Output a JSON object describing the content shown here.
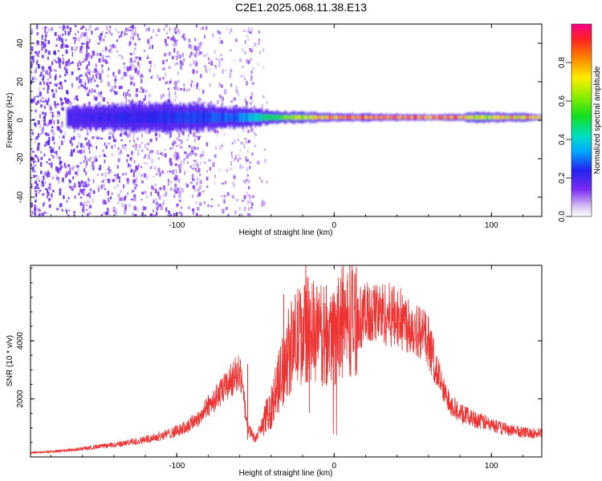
{
  "title": "C2E1.2025.068.11.38.E13",
  "chart_data": [
    {
      "type": "heatmap",
      "xlabel": "Height of straight line (km)",
      "ylabel": "Frequency (Hz)",
      "xlim": [
        -193,
        132
      ],
      "ylim": [
        -50,
        50
      ],
      "xticks": [
        -100,
        0,
        100
      ],
      "yticks": [
        -40,
        -20,
        0,
        20,
        40
      ],
      "colorbar": {
        "label": "Normalized spectral amplitude",
        "range": [
          0.0,
          1.0
        ],
        "ticks": [
          0.0,
          0.2,
          0.4,
          0.6,
          0.8
        ]
      },
      "band": [
        {
          "x": -165,
          "halfwidth_hz": 5,
          "amplitude": 0.22
        },
        {
          "x": -140,
          "halfwidth_hz": 6,
          "amplitude": 0.24
        },
        {
          "x": -110,
          "halfwidth_hz": 7,
          "amplitude": 0.26
        },
        {
          "x": -85,
          "halfwidth_hz": 6,
          "amplitude": 0.28
        },
        {
          "x": -60,
          "halfwidth_hz": 5,
          "amplitude": 0.32
        },
        {
          "x": -40,
          "halfwidth_hz": 3,
          "amplitude": 0.55
        },
        {
          "x": -20,
          "halfwidth_hz": 2.5,
          "amplitude": 0.75
        },
        {
          "x": 0,
          "halfwidth_hz": 2,
          "amplitude": 0.9
        },
        {
          "x": 40,
          "halfwidth_hz": 1.5,
          "amplitude": 0.95
        },
        {
          "x": 80,
          "halfwidth_hz": 1.5,
          "amplitude": 0.9
        },
        {
          "x": 90,
          "halfwidth_hz": 2.5,
          "amplitude": 0.7
        },
        {
          "x": 132,
          "halfwidth_hz": 1.5,
          "amplitude": 0.9
        }
      ]
    },
    {
      "type": "line",
      "xlabel": "Height of straight line (km)",
      "ylabel": "SNR (10 * v/v)",
      "xlim": [
        -193,
        132
      ],
      "ylim": [
        0,
        6600
      ],
      "xticks": [
        -100,
        0,
        100
      ],
      "yticks": [
        2000,
        4000
      ],
      "series": [
        {
          "color": "#ee3333",
          "x": [
            -193,
            -180,
            -165,
            -150,
            -135,
            -120,
            -105,
            -95,
            -85,
            -78,
            -72,
            -66,
            -60,
            -55,
            -50,
            -45,
            -40,
            -35,
            -30,
            -25,
            -20,
            -15,
            -10,
            -5,
            0,
            5,
            10,
            15,
            20,
            25,
            30,
            35,
            40,
            45,
            50,
            55,
            60,
            65,
            70,
            75,
            80,
            90,
            100,
            110,
            120,
            132
          ],
          "y": [
            150,
            180,
            250,
            350,
            450,
            600,
            800,
            1000,
            1400,
            1900,
            2200,
            2600,
            3000,
            1000,
            600,
            1200,
            1700,
            2600,
            3500,
            4000,
            4300,
            4400,
            4200,
            4100,
            4300,
            4600,
            4700,
            4800,
            4900,
            4950,
            4950,
            4900,
            4800,
            4700,
            4500,
            4300,
            4000,
            3000,
            2200,
            1800,
            1500,
            1300,
            1100,
            950,
            850,
            800
          ]
        }
      ]
    }
  ]
}
